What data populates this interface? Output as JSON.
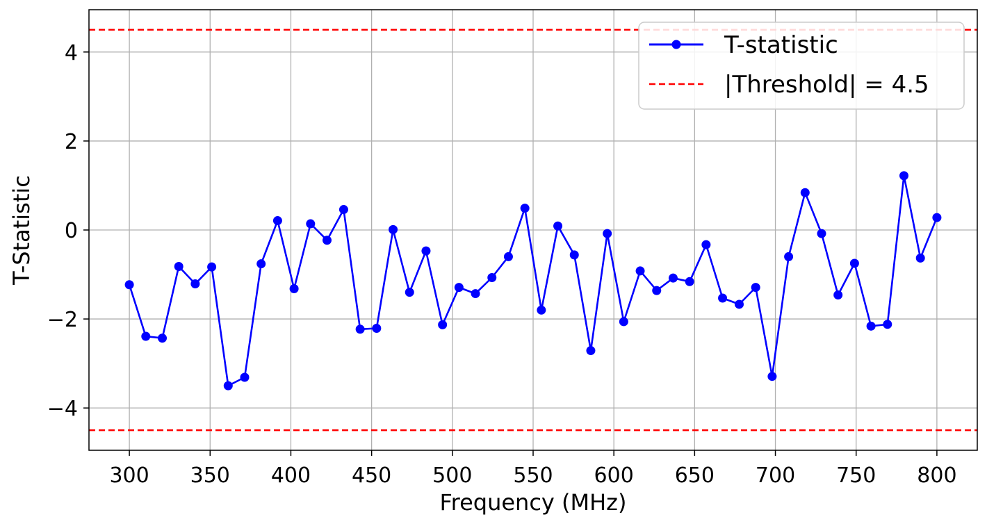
{
  "chart_data": {
    "type": "line",
    "xlabel": "Frequency (MHz)",
    "ylabel": "T-Statistic",
    "xlim": [
      275,
      825
    ],
    "ylim": [
      -4.95,
      4.95
    ],
    "xticks": [
      300,
      350,
      400,
      450,
      500,
      550,
      600,
      650,
      700,
      750,
      800
    ],
    "yticks": [
      -4,
      -2,
      0,
      2,
      4
    ],
    "ytick_labels": [
      "−4",
      "−2",
      "0",
      "2",
      "4"
    ],
    "grid": true,
    "legend_position": "top-right",
    "series": [
      {
        "name": "T-statistic",
        "color": "#0000ff",
        "marker": "circle",
        "x": [
          300,
          310.2,
          320.4,
          330.6,
          340.8,
          351.0,
          361.2,
          371.4,
          381.6,
          391.8,
          402.0,
          412.2,
          422.4,
          432.7,
          442.9,
          453.1,
          463.3,
          473.5,
          483.7,
          493.9,
          504.1,
          514.3,
          524.5,
          534.7,
          544.9,
          555.1,
          565.3,
          575.5,
          585.7,
          595.9,
          606.1,
          616.3,
          626.5,
          636.7,
          646.9,
          657.1,
          667.3,
          677.6,
          687.8,
          698.0,
          708.2,
          718.4,
          728.6,
          738.8,
          749.0,
          759.2,
          769.4,
          779.6,
          789.8,
          800
        ],
        "y": [
          -1.23,
          -2.39,
          -2.43,
          -0.82,
          -1.21,
          -0.83,
          -3.5,
          -3.31,
          -0.76,
          0.21,
          -1.32,
          0.14,
          -0.23,
          0.46,
          -2.23,
          -2.21,
          0.01,
          -1.4,
          -0.47,
          -2.13,
          -1.29,
          -1.43,
          -1.07,
          -0.6,
          0.49,
          -1.8,
          0.09,
          -0.56,
          -2.71,
          -0.08,
          -2.06,
          -0.92,
          -1.36,
          -1.08,
          -1.16,
          -0.33,
          -1.53,
          -1.67,
          -1.29,
          -3.29,
          -0.6,
          0.84,
          -0.08,
          -1.46,
          -0.75,
          -2.16,
          -2.12,
          1.22,
          -0.63,
          0.28
        ]
      }
    ],
    "threshold_lines": {
      "name": "|Threshold| = 4.5",
      "color": "#ff0000",
      "values": [
        4.5,
        -4.5
      ]
    }
  }
}
